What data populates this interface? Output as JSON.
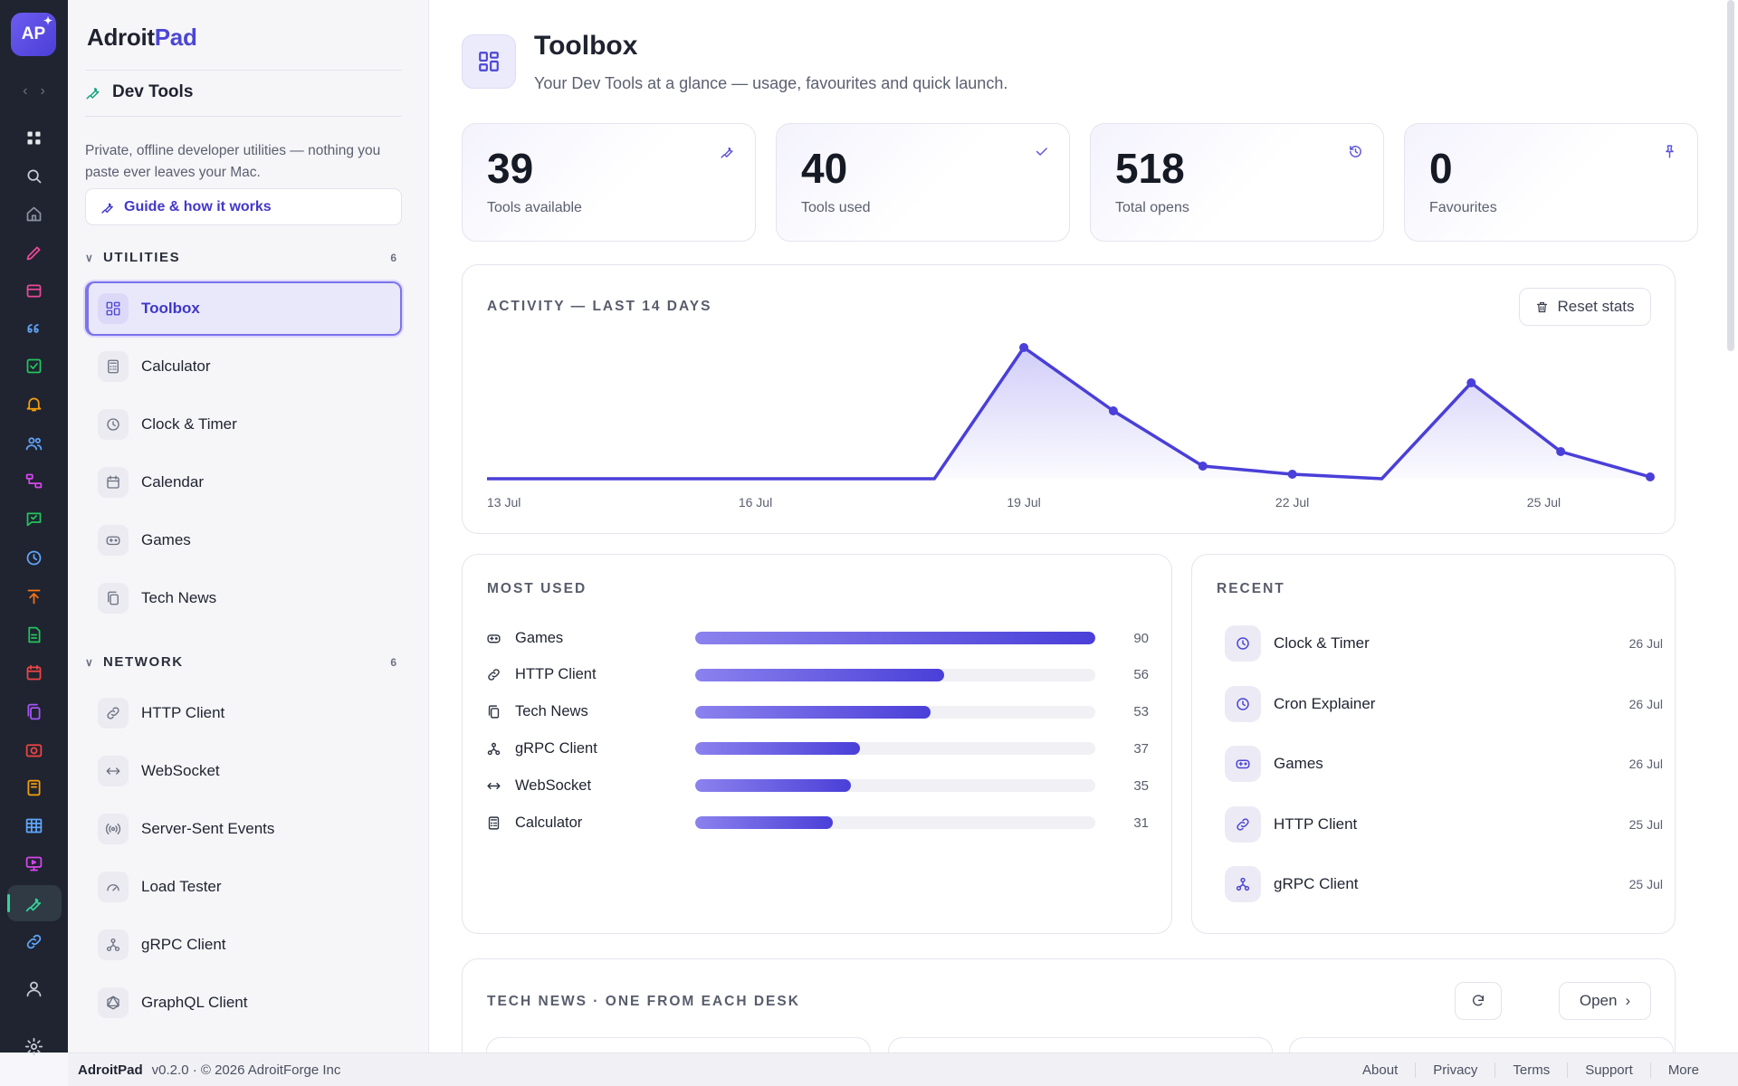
{
  "app": {
    "logo_text": "AP",
    "brand_prefix": "Adroit",
    "brand_suffix": "Pad"
  },
  "rail": {
    "icons": [
      "grid-icon",
      "search-icon",
      "home-icon",
      "pencil-icon",
      "inbox-icon",
      "quote-icon",
      "check-square-icon",
      "bell-icon",
      "users-icon",
      "workflow-icon",
      "chat-icon",
      "clock-icon",
      "upload-icon",
      "document-icon",
      "calendar-icon",
      "copy-icon",
      "camera-icon",
      "notebook-icon",
      "table-icon",
      "presentation-icon",
      "wrench-icon",
      "link-icon",
      "user-icon",
      "settings-icon"
    ],
    "active": "wrench-icon"
  },
  "sidebar": {
    "section_title": "Dev Tools",
    "description": "Private, offline developer utilities — nothing you paste ever leaves your Mac.",
    "guide_label": "Guide & how it works",
    "groups": [
      {
        "name": "UTILITIES",
        "count": "6",
        "items": [
          {
            "label": "Toolbox",
            "icon": "toolbox-icon",
            "active": true
          },
          {
            "label": "Calculator",
            "icon": "calculator-icon"
          },
          {
            "label": "Clock & Timer",
            "icon": "clock-icon"
          },
          {
            "label": "Calendar",
            "icon": "calendar-icon"
          },
          {
            "label": "Games",
            "icon": "gamepad-icon"
          },
          {
            "label": "Tech News",
            "icon": "copy-icon"
          }
        ]
      },
      {
        "name": "NETWORK",
        "count": "6",
        "items": [
          {
            "label": "HTTP Client",
            "icon": "link-icon"
          },
          {
            "label": "WebSocket",
            "icon": "arrows-icon"
          },
          {
            "label": "Server-Sent Events",
            "icon": "broadcast-icon"
          },
          {
            "label": "Load Tester",
            "icon": "gauge-icon"
          },
          {
            "label": "gRPC Client",
            "icon": "nodes-icon"
          },
          {
            "label": "GraphQL Client",
            "icon": "graphql-icon"
          }
        ]
      }
    ]
  },
  "header": {
    "title": "Toolbox",
    "subtitle": "Your Dev Tools at a glance — usage, favourites and quick launch."
  },
  "stats": [
    {
      "value": "39",
      "label": "Tools available",
      "icon": "wrench-icon"
    },
    {
      "value": "40",
      "label": "Tools used",
      "icon": "check-icon"
    },
    {
      "value": "518",
      "label": "Total opens",
      "icon": "history-icon"
    },
    {
      "value": "0",
      "label": "Favourites",
      "icon": "pin-icon"
    }
  ],
  "activity": {
    "title": "ACTIVITY — LAST 14 DAYS",
    "reset_label": "Reset stats"
  },
  "chart_data": {
    "type": "area",
    "x": [
      "13 Jul",
      "14 Jul",
      "15 Jul",
      "16 Jul",
      "17 Jul",
      "18 Jul",
      "19 Jul",
      "20 Jul",
      "21 Jul",
      "22 Jul",
      "23 Jul",
      "24 Jul",
      "25 Jul",
      "26 Jul"
    ],
    "tick_labels": [
      "13 Jul",
      "16 Jul",
      "19 Jul",
      "22 Jul",
      "25 Jul"
    ],
    "series": [
      {
        "values": [
          0,
          0,
          0,
          0,
          0,
          0,
          145,
          75,
          14,
          5,
          0,
          106,
          30,
          2
        ]
      }
    ],
    "ylim": [
      0,
      150
    ],
    "grid": false,
    "color": "#4a3fd8"
  },
  "most_used": {
    "title": "MOST USED",
    "max": 90,
    "rows": [
      {
        "label": "Games",
        "value": 90,
        "icon": "gamepad-icon"
      },
      {
        "label": "HTTP Client",
        "value": 56,
        "icon": "link-icon"
      },
      {
        "label": "Tech News",
        "value": 53,
        "icon": "copy-icon"
      },
      {
        "label": "gRPC Client",
        "value": 37,
        "icon": "nodes-icon"
      },
      {
        "label": "WebSocket",
        "value": 35,
        "icon": "arrows-icon"
      },
      {
        "label": "Calculator",
        "value": 31,
        "icon": "calculator-icon"
      }
    ]
  },
  "recent": {
    "title": "RECENT",
    "rows": [
      {
        "label": "Clock & Timer",
        "date": "26 Jul",
        "icon": "clock-icon"
      },
      {
        "label": "Cron Explainer",
        "date": "26 Jul",
        "icon": "clock-icon"
      },
      {
        "label": "Games",
        "date": "26 Jul",
        "icon": "gamepad-icon"
      },
      {
        "label": "HTTP Client",
        "date": "25 Jul",
        "icon": "link-icon"
      },
      {
        "label": "gRPC Client",
        "date": "25 Jul",
        "icon": "nodes-icon"
      }
    ]
  },
  "news": {
    "title": "TECH NEWS · ONE FROM EACH DESK",
    "open_label": "Open"
  },
  "footer": {
    "app": "AdroitPad",
    "version": "v0.2.0 · © 2026 AdroitForge Inc",
    "links": [
      "About",
      "Privacy",
      "Terms",
      "Support",
      "More"
    ]
  }
}
